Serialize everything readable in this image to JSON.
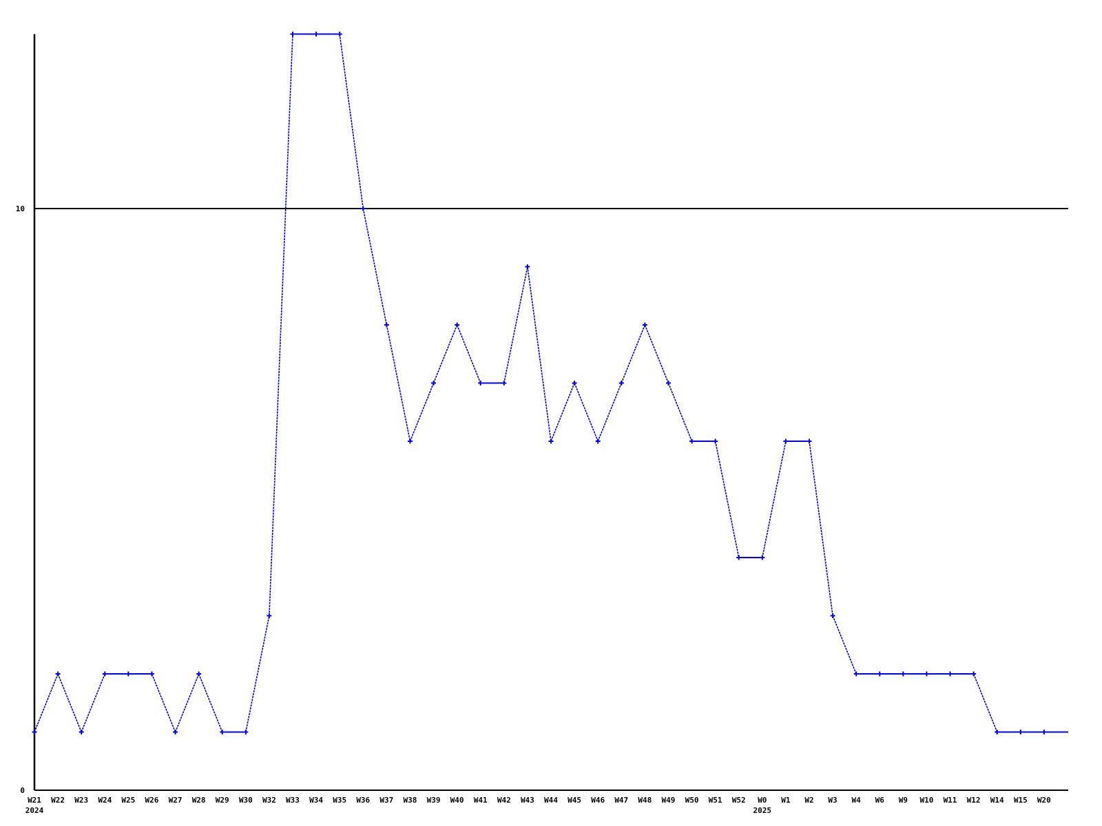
{
  "chart_data": {
    "type": "line",
    "x_labels": [
      "W21",
      "W22",
      "W23",
      "W24",
      "W25",
      "W26",
      "W27",
      "W28",
      "W29",
      "W30",
      "W32",
      "W33",
      "W34",
      "W35",
      "W36",
      "W37",
      "W38",
      "W39",
      "W40",
      "W41",
      "W42",
      "W43",
      "W44",
      "W45",
      "W46",
      "W47",
      "W48",
      "W49",
      "W50",
      "W51",
      "W52",
      "W0",
      "W1",
      "W2",
      "W3",
      "W4",
      "W6",
      "W9",
      "W10",
      "W11",
      "W12",
      "W14",
      "W15",
      "W20"
    ],
    "values": [
      1,
      2,
      1,
      2,
      2,
      2,
      1,
      2,
      1,
      1,
      3,
      13,
      13,
      13,
      10,
      8,
      6,
      7,
      8,
      7,
      7,
      9,
      6,
      7,
      6,
      7,
      8,
      7,
      6,
      6,
      4,
      4,
      6,
      6,
      3,
      2,
      2,
      2,
      2,
      2,
      2,
      1,
      1,
      1
    ],
    "year_labels": [
      {
        "text": "2024",
        "index": 0
      },
      {
        "text": "2025",
        "index": 31
      }
    ],
    "y_ticks": [
      {
        "value": 0,
        "label": "0"
      },
      {
        "value": 10,
        "label": "10"
      }
    ],
    "reference_line_value": 10,
    "ylim": [
      0,
      13
    ],
    "grid": "single horizontal reference line at y=10",
    "legend": "none",
    "marker_style": "plus",
    "line_extends_flat_to_right_edge": true,
    "colors": {
      "line": "#0000ff",
      "axis": "#000000",
      "text": "#000000",
      "background": "#ffffff"
    }
  }
}
